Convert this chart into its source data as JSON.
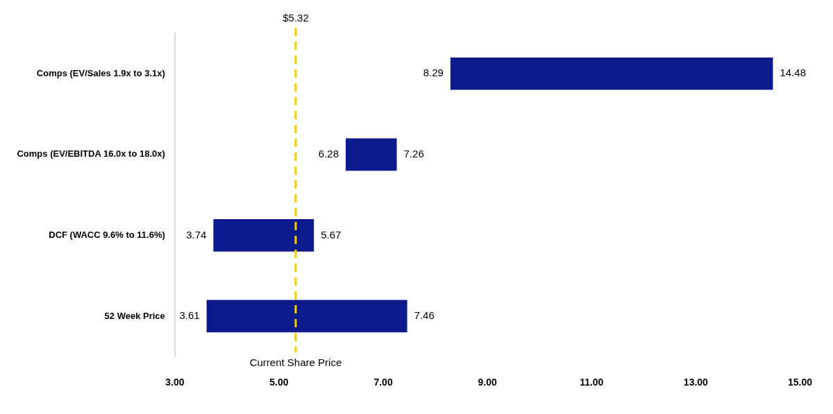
{
  "chart_data": {
    "type": "bar",
    "orientation": "horizontal",
    "categories": [
      "Comps (EV/Sales 1.9x to 3.1x)",
      "Comps (EV/EBITDA 16.0x to 18.0x)",
      "DCF (WACC 9.6% to 11.6%)",
      "52 Week Price"
    ],
    "base": [
      8.29,
      6.28,
      3.74,
      3.61
    ],
    "values": [
      6.19,
      0.98,
      1.93,
      3.85
    ],
    "color": "#0c1a8c",
    "xlim": [
      3,
      15
    ],
    "xticks": [
      {
        "value": 3,
        "label": "3.00"
      },
      {
        "value": 5,
        "label": "5.00"
      },
      {
        "value": 7,
        "label": "7.00"
      },
      {
        "value": 9,
        "label": "9.00"
      },
      {
        "value": 11,
        "label": "11.00"
      },
      {
        "value": 13,
        "label": "13.00"
      },
      {
        "value": 15,
        "label": "15.00"
      }
    ],
    "grid": false,
    "legend": false,
    "ref_lines": [
      {
        "axis": "x",
        "value": 5.32,
        "label": "$5.32",
        "color": "#f5d000",
        "line_style": "dashed"
      }
    ],
    "annotations": [
      {
        "text": "8.29",
        "x": 8.29,
        "y": "Comps (EV/Sales 1.9x to 3.1x)"
      },
      {
        "text": "14.48",
        "x": 14.48,
        "y": "Comps (EV/Sales 1.9x to 3.1x)"
      },
      {
        "text": "6.28",
        "x": 6.28,
        "y": "Comps (EV/EBITDA 16.0x to 18.0x)"
      },
      {
        "text": "7.26",
        "x": 7.26,
        "y": "Comps (EV/EBITDA 16.0x to 18.0x)"
      },
      {
        "text": "3.74",
        "x": 3.74,
        "y": "DCF (WACC 9.6% to 11.6%)"
      },
      {
        "text": "5.67",
        "x": 5.67,
        "y": "DCF (WACC 9.6% to 11.6%)"
      },
      {
        "text": "3.61",
        "x": 3.61,
        "y": "52 Week Price"
      },
      {
        "text": "7.46",
        "x": 7.46,
        "y": "52 Week Price"
      },
      "Current Share Price"
    ]
  }
}
